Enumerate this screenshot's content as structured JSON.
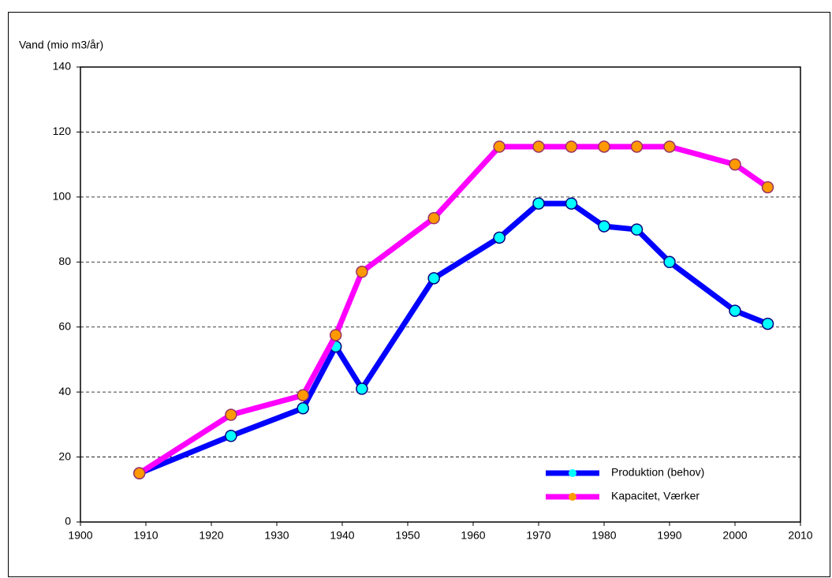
{
  "chart_data": {
    "type": "line",
    "y_label": "Vand (mio m3/år)",
    "x": [
      1909,
      1923,
      1934,
      1939,
      1943,
      1954,
      1964,
      1970,
      1975,
      1980,
      1985,
      1990,
      2000,
      2005
    ],
    "series": [
      {
        "name": "Produktion (behov)",
        "color": "#0000ff",
        "marker_color": "#00ffff",
        "values": [
          15,
          26.5,
          35,
          54,
          41,
          75,
          87.5,
          98,
          98,
          91,
          90,
          80,
          65,
          61
        ]
      },
      {
        "name": "Kapacitet, Værker",
        "color": "#ff00ff",
        "marker_color": "#ff9900",
        "values": [
          15,
          33,
          39,
          57.5,
          77,
          93.5,
          115.5,
          115.5,
          115.5,
          115.5,
          115.5,
          115.5,
          110,
          103
        ]
      }
    ],
    "xlim": [
      1900,
      2010
    ],
    "xticks": [
      1900,
      1910,
      1920,
      1930,
      1940,
      1950,
      1960,
      1970,
      1980,
      1990,
      2000,
      2010
    ],
    "ylim": [
      0,
      140
    ],
    "yticks": [
      0,
      20,
      40,
      60,
      80,
      100,
      120,
      140
    ],
    "grid": true
  }
}
